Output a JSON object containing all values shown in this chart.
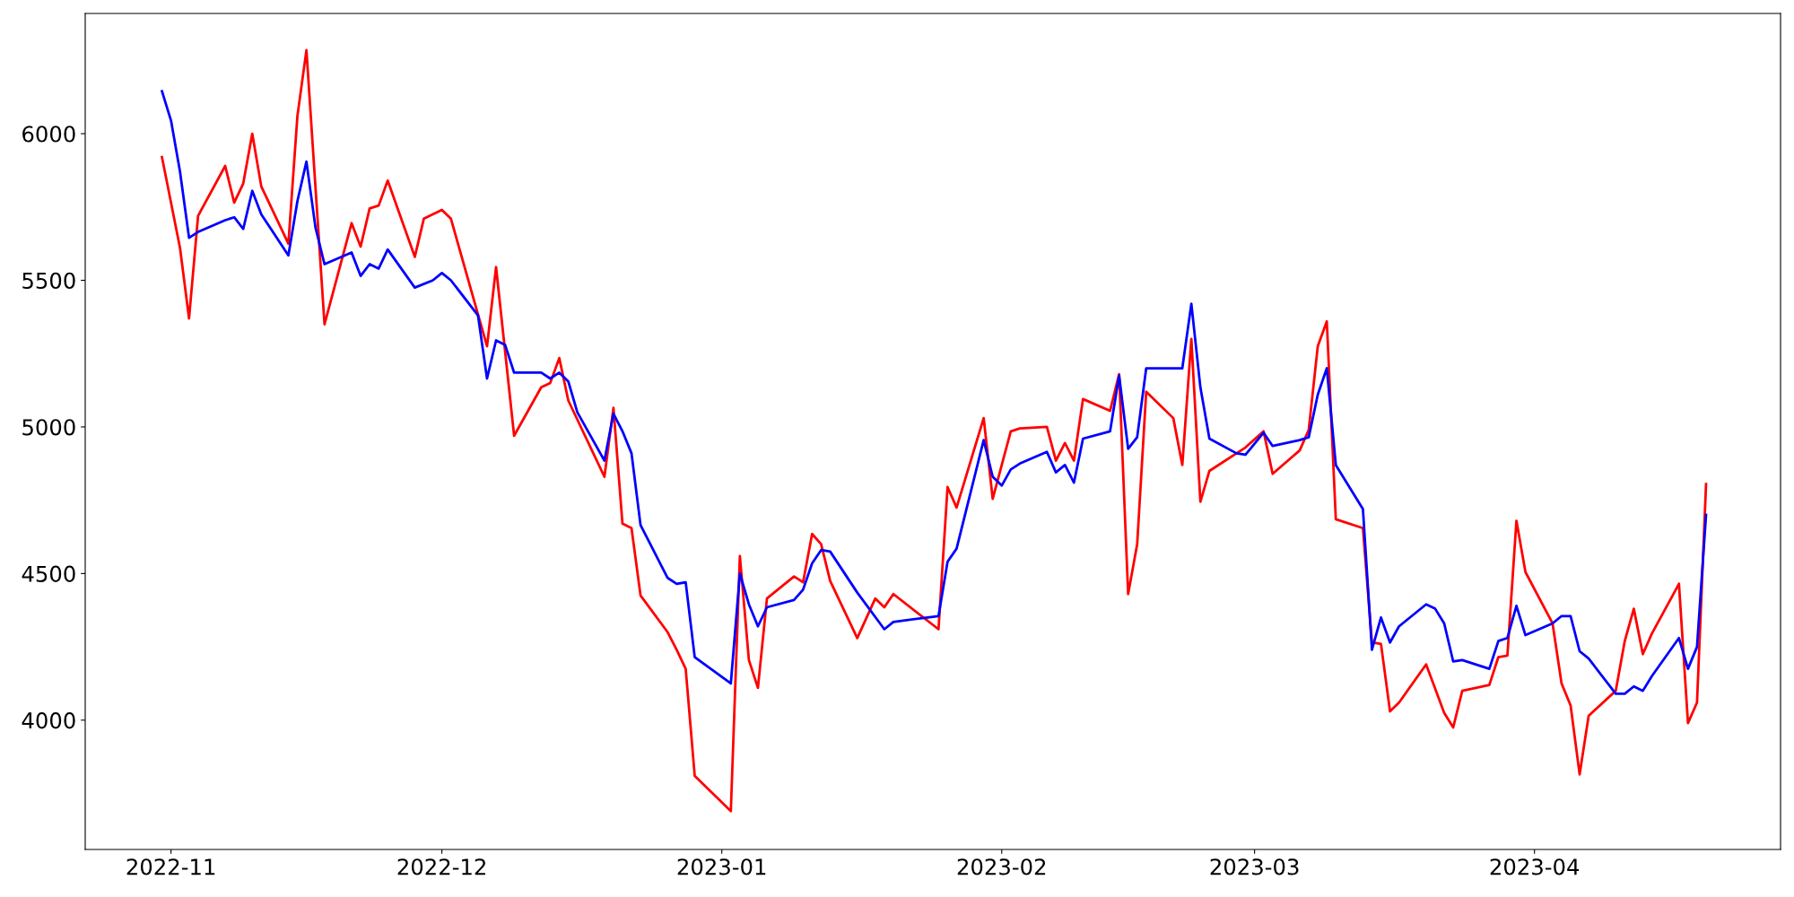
{
  "chart_data": {
    "type": "line",
    "xlim": [
      "2022-10-22T12:00",
      "2023-04-28T06:00"
    ],
    "ylim": [
      3559,
      6410
    ],
    "xticks": [
      {
        "value": "2022-11-01",
        "label": "2022-11"
      },
      {
        "value": "2022-12-01",
        "label": "2022-12"
      },
      {
        "value": "2023-01-01",
        "label": "2023-01"
      },
      {
        "value": "2023-02-01",
        "label": "2023-02"
      },
      {
        "value": "2023-03-01",
        "label": "2023-03"
      },
      {
        "value": "2023-04-01",
        "label": "2023-04"
      }
    ],
    "yticks": [
      4000,
      4500,
      5000,
      5500,
      6000
    ],
    "marker": "none",
    "line_style": "solid",
    "series": [
      {
        "color": "#ff0000",
        "x": [
          "2022-10-31",
          "2022-11-02",
          "2022-11-03",
          "2022-11-04",
          "2022-11-07",
          "2022-11-08",
          "2022-11-09",
          "2022-11-10",
          "2022-11-11",
          "2022-11-14",
          "2022-11-15",
          "2022-11-16",
          "2022-11-18",
          "2022-11-21",
          "2022-11-22",
          "2022-11-23",
          "2022-11-24",
          "2022-11-25",
          "2022-11-28",
          "2022-11-29",
          "2022-12-01",
          "2022-12-02",
          "2022-12-06",
          "2022-12-07",
          "2022-12-09",
          "2022-12-12",
          "2022-12-13",
          "2022-12-14",
          "2022-12-15",
          "2022-12-19",
          "2022-12-20",
          "2022-12-21",
          "2022-12-22",
          "2022-12-23",
          "2022-12-26",
          "2022-12-27",
          "2022-12-28",
          "2022-12-29",
          "2023-01-02",
          "2023-01-03",
          "2023-01-04",
          "2023-01-05",
          "2023-01-06",
          "2023-01-09",
          "2023-01-10",
          "2023-01-11",
          "2023-01-12",
          "2023-01-13",
          "2023-01-16",
          "2023-01-18",
          "2023-01-19",
          "2023-01-20",
          "2023-01-25",
          "2023-01-26",
          "2023-01-27",
          "2023-01-30",
          "2023-01-31",
          "2023-02-02",
          "2023-02-03",
          "2023-02-06",
          "2023-02-07",
          "2023-02-08",
          "2023-02-09",
          "2023-02-10",
          "2023-02-13",
          "2023-02-14",
          "2023-02-15",
          "2023-02-16",
          "2023-02-17",
          "2023-02-20",
          "2023-02-21",
          "2023-02-22",
          "2023-02-23",
          "2023-02-24",
          "2023-02-27",
          "2023-02-28",
          "2023-03-02",
          "2023-03-03",
          "2023-03-06",
          "2023-03-07",
          "2023-03-08",
          "2023-03-09",
          "2023-03-10",
          "2023-03-13",
          "2023-03-14",
          "2023-03-15",
          "2023-03-16",
          "2023-03-17",
          "2023-03-20",
          "2023-03-22",
          "2023-03-23",
          "2023-03-24",
          "2023-03-27",
          "2023-03-28",
          "2023-03-29",
          "2023-03-30",
          "2023-03-31",
          "2023-04-03",
          "2023-04-04",
          "2023-04-05",
          "2023-04-06",
          "2023-04-07",
          "2023-04-10",
          "2023-04-11",
          "2023-04-12",
          "2023-04-13",
          "2023-04-14",
          "2023-04-17",
          "2023-04-18",
          "2023-04-19",
          "2023-04-20"
        ],
        "values": [
          5920,
          5610,
          5370,
          5720,
          5890,
          5765,
          5830,
          6000,
          5820,
          5625,
          6060,
          6285,
          5350,
          5695,
          5615,
          5745,
          5755,
          5840,
          5580,
          5710,
          5740,
          5710,
          5275,
          5545,
          4970,
          5135,
          5150,
          5235,
          5090,
          4830,
          5065,
          4670,
          4655,
          4425,
          4300,
          4240,
          4175,
          3810,
          3690,
          4560,
          4205,
          4110,
          4415,
          4490,
          4470,
          4635,
          4600,
          4475,
          4280,
          4415,
          4385,
          4430,
          4310,
          4795,
          4725,
          5030,
          4755,
          4985,
          4995,
          5000,
          4885,
          4945,
          4885,
          5095,
          5055,
          5180,
          4430,
          4600,
          5120,
          5030,
          4870,
          5300,
          4745,
          4850,
          4910,
          4930,
          4985,
          4840,
          4920,
          4990,
          5275,
          5360,
          4685,
          4655,
          4265,
          4260,
          4030,
          4060,
          4190,
          4025,
          3975,
          4100,
          4120,
          4215,
          4220,
          4680,
          4505,
          4330,
          4125,
          4050,
          3815,
          4015,
          4100,
          4270,
          4380,
          4225,
          4295,
          4465,
          3990,
          4060,
          4805
        ]
      },
      {
        "color": "#0000ff",
        "x": [
          "2022-10-31",
          "2022-11-01",
          "2022-11-02",
          "2022-11-03",
          "2022-11-04",
          "2022-11-07",
          "2022-11-08",
          "2022-11-09",
          "2022-11-10",
          "2022-11-11",
          "2022-11-14",
          "2022-11-15",
          "2022-11-16",
          "2022-11-17",
          "2022-11-18",
          "2022-11-21",
          "2022-11-22",
          "2022-11-23",
          "2022-11-24",
          "2022-11-25",
          "2022-11-28",
          "2022-11-30",
          "2022-12-01",
          "2022-12-02",
          "2022-12-05",
          "2022-12-06",
          "2022-12-07",
          "2022-12-08",
          "2022-12-09",
          "2022-12-12",
          "2022-12-13",
          "2022-12-14",
          "2022-12-15",
          "2022-12-16",
          "2022-12-19",
          "2022-12-20",
          "2022-12-21",
          "2022-12-22",
          "2022-12-23",
          "2022-12-26",
          "2022-12-27",
          "2022-12-28",
          "2022-12-29",
          "2023-01-02",
          "2023-01-03",
          "2023-01-04",
          "2023-01-05",
          "2023-01-06",
          "2023-01-09",
          "2023-01-10",
          "2023-01-11",
          "2023-01-12",
          "2023-01-13",
          "2023-01-16",
          "2023-01-19",
          "2023-01-20",
          "2023-01-25",
          "2023-01-26",
          "2023-01-27",
          "2023-01-30",
          "2023-01-31",
          "2023-02-01",
          "2023-02-02",
          "2023-02-03",
          "2023-02-06",
          "2023-02-07",
          "2023-02-08",
          "2023-02-09",
          "2023-02-10",
          "2023-02-13",
          "2023-02-14",
          "2023-02-15",
          "2023-02-16",
          "2023-02-17",
          "2023-02-21",
          "2023-02-22",
          "2023-02-23",
          "2023-02-24",
          "2023-02-27",
          "2023-02-28",
          "2023-03-02",
          "2023-03-03",
          "2023-03-06",
          "2023-03-07",
          "2023-03-08",
          "2023-03-09",
          "2023-03-10",
          "2023-03-13",
          "2023-03-14",
          "2023-03-15",
          "2023-03-16",
          "2023-03-17",
          "2023-03-20",
          "2023-03-21",
          "2023-03-22",
          "2023-03-23",
          "2023-03-24",
          "2023-03-27",
          "2023-03-28",
          "2023-03-29",
          "2023-03-30",
          "2023-03-31",
          "2023-04-03",
          "2023-04-04",
          "2023-04-05",
          "2023-04-06",
          "2023-04-07",
          "2023-04-10",
          "2023-04-11",
          "2023-04-12",
          "2023-04-13",
          "2023-04-14",
          "2023-04-17",
          "2023-04-18",
          "2023-04-19",
          "2023-04-20"
        ],
        "values": [
          6145,
          6045,
          5870,
          5645,
          5665,
          5705,
          5715,
          5675,
          5805,
          5725,
          5585,
          5770,
          5905,
          5680,
          5555,
          5595,
          5515,
          5555,
          5540,
          5605,
          5475,
          5500,
          5525,
          5500,
          5380,
          5165,
          5295,
          5280,
          5185,
          5185,
          5165,
          5185,
          5155,
          5050,
          4885,
          5045,
          4985,
          4910,
          4665,
          4485,
          4465,
          4470,
          4215,
          4125,
          4500,
          4395,
          4320,
          4385,
          4410,
          4445,
          4535,
          4580,
          4575,
          4435,
          4310,
          4335,
          4355,
          4540,
          4585,
          4955,
          4830,
          4800,
          4855,
          4875,
          4915,
          4845,
          4870,
          4810,
          4960,
          4985,
          5175,
          4925,
          4965,
          5200,
          5200,
          5420,
          5135,
          4960,
          4910,
          4905,
          4980,
          4935,
          4955,
          4965,
          5110,
          5200,
          4870,
          4720,
          4240,
          4350,
          4265,
          4320,
          4395,
          4380,
          4330,
          4200,
          4205,
          4175,
          4270,
          4280,
          4390,
          4290,
          4330,
          4355,
          4355,
          4235,
          4210,
          4090,
          4090,
          4115,
          4100,
          4150,
          4280,
          4175,
          4250,
          4700
        ]
      }
    ]
  }
}
